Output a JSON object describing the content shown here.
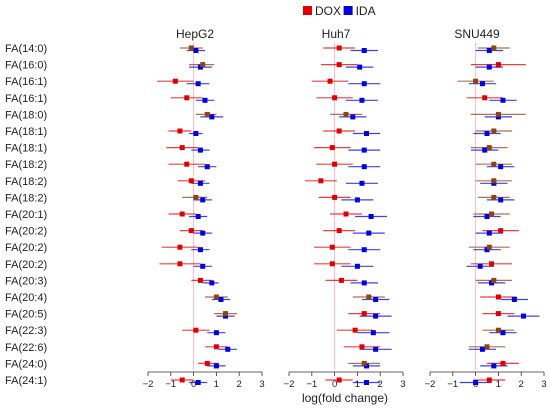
{
  "chart_data": {
    "type": "forest",
    "legend": [
      {
        "name": "DOX",
        "color": "#e00000"
      },
      {
        "name": "IDA",
        "color": "#0000e0"
      }
    ],
    "overlap_color": "#8b4513",
    "xlabel": "log(fold change)",
    "xlim": [
      -2,
      3
    ],
    "xticks": [
      -2,
      -1,
      0,
      1,
      2,
      3
    ],
    "rows": [
      "FA(14:0)",
      "FA(16:0)",
      "FA(16:1)",
      "FA(16:1)",
      "FA(18:0)",
      "FA(18:1)",
      "FA(18:1)",
      "FA(18:2)",
      "FA(18:2)",
      "FA(18:2)",
      "FA(20:1)",
      "FA(20:2)",
      "FA(20:2)",
      "FA(20:2)",
      "FA(20:3)",
      "FA(20:4)",
      "FA(20:5)",
      "FA(22:3)",
      "FA(22:6)",
      "FA(24:0)",
      "FA(24:1)"
    ],
    "panels": [
      {
        "title": "HepG2",
        "series": [
          {
            "name": "DOX",
            "points": [
              [
                -0.1,
                -0.6,
                0.4
              ],
              [
                0.4,
                -0.2,
                0.9
              ],
              [
                -0.8,
                -1.6,
                0.0
              ],
              [
                -0.3,
                -1.0,
                0.4
              ],
              [
                0.6,
                0.1,
                1.0
              ],
              [
                -0.6,
                -1.1,
                -0.1
              ],
              [
                -0.5,
                -1.2,
                0.2
              ],
              [
                -0.3,
                -1.1,
                0.5
              ],
              [
                -0.1,
                -0.7,
                0.5
              ],
              [
                0.1,
                -0.5,
                0.6
              ],
              [
                -0.5,
                -1.1,
                0.1
              ],
              [
                -0.1,
                -0.6,
                0.4
              ],
              [
                -0.6,
                -1.4,
                0.2
              ],
              [
                -0.6,
                -1.5,
                0.3
              ],
              [
                0.3,
                -0.1,
                0.8
              ],
              [
                1.0,
                0.5,
                1.5
              ],
              [
                1.4,
                0.9,
                1.9
              ],
              [
                0.1,
                -0.5,
                0.7
              ],
              [
                1.0,
                0.5,
                1.5
              ],
              [
                0.6,
                0.2,
                1.1
              ],
              [
                -0.5,
                -1.0,
                0.0
              ]
            ]
          },
          {
            "name": "IDA",
            "points": [
              [
                0.1,
                -0.3,
                0.5
              ],
              [
                0.3,
                -0.2,
                0.8
              ],
              [
                0.2,
                -0.3,
                0.7
              ],
              [
                0.5,
                0.1,
                0.9
              ],
              [
                0.8,
                0.3,
                1.3
              ],
              [
                0.1,
                -0.2,
                0.4
              ],
              [
                0.3,
                -0.1,
                0.7
              ],
              [
                0.6,
                0.2,
                1.0
              ],
              [
                0.3,
                -0.1,
                0.7
              ],
              [
                0.4,
                0.0,
                0.8
              ],
              [
                0.2,
                -0.2,
                0.6
              ],
              [
                0.4,
                0.0,
                0.8
              ],
              [
                0.3,
                -0.1,
                0.7
              ],
              [
                0.4,
                0.0,
                0.8
              ],
              [
                0.8,
                0.4,
                1.1
              ],
              [
                1.2,
                0.8,
                1.6
              ],
              [
                1.4,
                1.0,
                1.8
              ],
              [
                1.0,
                0.6,
                1.4
              ],
              [
                1.5,
                1.1,
                1.9
              ],
              [
                1.0,
                0.6,
                1.4
              ],
              [
                0.2,
                -0.2,
                0.6
              ]
            ]
          }
        ]
      },
      {
        "title": "Huh7",
        "series": [
          {
            "name": "DOX",
            "points": [
              [
                0.2,
                -0.5,
                0.9
              ],
              [
                0.2,
                -0.6,
                1.0
              ],
              [
                -0.2,
                -1.0,
                0.6
              ],
              [
                0.0,
                -0.8,
                0.8
              ],
              [
                0.5,
                -0.2,
                1.2
              ],
              [
                0.2,
                -0.5,
                0.9
              ],
              [
                -0.1,
                -0.9,
                0.7
              ],
              [
                0.0,
                -0.8,
                0.8
              ],
              [
                -0.6,
                -1.3,
                0.1
              ],
              [
                0.0,
                -0.7,
                0.7
              ],
              [
                0.5,
                -0.2,
                1.2
              ],
              [
                0.2,
                -0.5,
                0.9
              ],
              [
                -0.1,
                -0.9,
                0.7
              ],
              [
                -0.1,
                -0.9,
                0.7
              ],
              [
                0.3,
                -0.4,
                1.0
              ],
              [
                1.5,
                0.8,
                2.2
              ],
              [
                1.3,
                0.6,
                2.0
              ],
              [
                0.9,
                0.1,
                1.7
              ],
              [
                1.2,
                0.4,
                2.0
              ],
              [
                1.3,
                0.6,
                2.0
              ],
              [
                0.2,
                -0.4,
                0.8
              ]
            ]
          },
          {
            "name": "IDA",
            "points": [
              [
                1.3,
                0.7,
                1.9
              ],
              [
                1.1,
                0.5,
                1.7
              ],
              [
                1.3,
                0.6,
                2.0
              ],
              [
                1.2,
                0.5,
                1.9
              ],
              [
                0.8,
                0.2,
                1.4
              ],
              [
                1.4,
                0.8,
                2.0
              ],
              [
                1.3,
                0.6,
                2.0
              ],
              [
                1.3,
                0.6,
                2.0
              ],
              [
                1.2,
                0.5,
                1.9
              ],
              [
                1.0,
                0.3,
                1.7
              ],
              [
                1.6,
                0.9,
                2.3
              ],
              [
                1.5,
                0.8,
                2.2
              ],
              [
                1.3,
                0.6,
                2.0
              ],
              [
                1.0,
                0.3,
                1.7
              ],
              [
                1.3,
                0.7,
                1.9
              ],
              [
                1.8,
                1.2,
                2.4
              ],
              [
                1.8,
                1.1,
                2.5
              ],
              [
                1.7,
                1.0,
                2.4
              ],
              [
                1.8,
                1.1,
                2.5
              ],
              [
                1.4,
                0.8,
                2.0
              ],
              [
                1.4,
                0.8,
                2.0
              ]
            ]
          }
        ]
      },
      {
        "title": "SNU449",
        "series": [
          {
            "name": "DOX",
            "points": [
              [
                0.8,
                0.1,
                1.5
              ],
              [
                1.0,
                -0.2,
                2.2
              ],
              [
                0.0,
                -0.8,
                0.8
              ],
              [
                0.4,
                -0.4,
                1.2
              ],
              [
                1.0,
                -0.2,
                2.2
              ],
              [
                0.8,
                0.0,
                1.6
              ],
              [
                0.6,
                -0.2,
                1.4
              ],
              [
                0.8,
                0.0,
                1.6
              ],
              [
                0.8,
                0.0,
                1.6
              ],
              [
                0.8,
                0.1,
                1.5
              ],
              [
                0.7,
                -0.1,
                1.5
              ],
              [
                1.1,
                0.3,
                1.9
              ],
              [
                0.6,
                -0.3,
                1.5
              ],
              [
                0.7,
                -0.2,
                1.6
              ],
              [
                0.8,
                0.0,
                1.6
              ],
              [
                1.0,
                0.2,
                1.8
              ],
              [
                1.0,
                0.3,
                1.7
              ],
              [
                1.0,
                0.3,
                1.7
              ],
              [
                0.5,
                -0.3,
                1.3
              ],
              [
                1.2,
                0.5,
                1.9
              ],
              [
                0.6,
                -0.1,
                1.3
              ]
            ]
          },
          {
            "name": "IDA",
            "points": [
              [
                0.6,
                0.0,
                1.2
              ],
              [
                0.6,
                0.0,
                1.2
              ],
              [
                0.3,
                -0.3,
                0.9
              ],
              [
                1.2,
                0.6,
                1.8
              ],
              [
                1.0,
                0.4,
                1.6
              ],
              [
                0.5,
                -0.1,
                1.1
              ],
              [
                0.4,
                -0.2,
                1.0
              ],
              [
                1.1,
                0.5,
                1.7
              ],
              [
                0.8,
                0.2,
                1.4
              ],
              [
                1.1,
                0.5,
                1.7
              ],
              [
                0.5,
                -0.1,
                1.1
              ],
              [
                0.6,
                0.0,
                1.2
              ],
              [
                0.5,
                -0.1,
                1.1
              ],
              [
                0.2,
                -0.4,
                0.8
              ],
              [
                0.7,
                0.1,
                1.3
              ],
              [
                1.7,
                1.1,
                2.3
              ],
              [
                2.1,
                1.4,
                2.8
              ],
              [
                1.2,
                0.6,
                1.8
              ],
              [
                0.3,
                -0.3,
                0.9
              ],
              [
                0.8,
                0.2,
                1.4
              ],
              [
                0.0,
                -0.7,
                0.7
              ]
            ]
          }
        ]
      }
    ]
  }
}
